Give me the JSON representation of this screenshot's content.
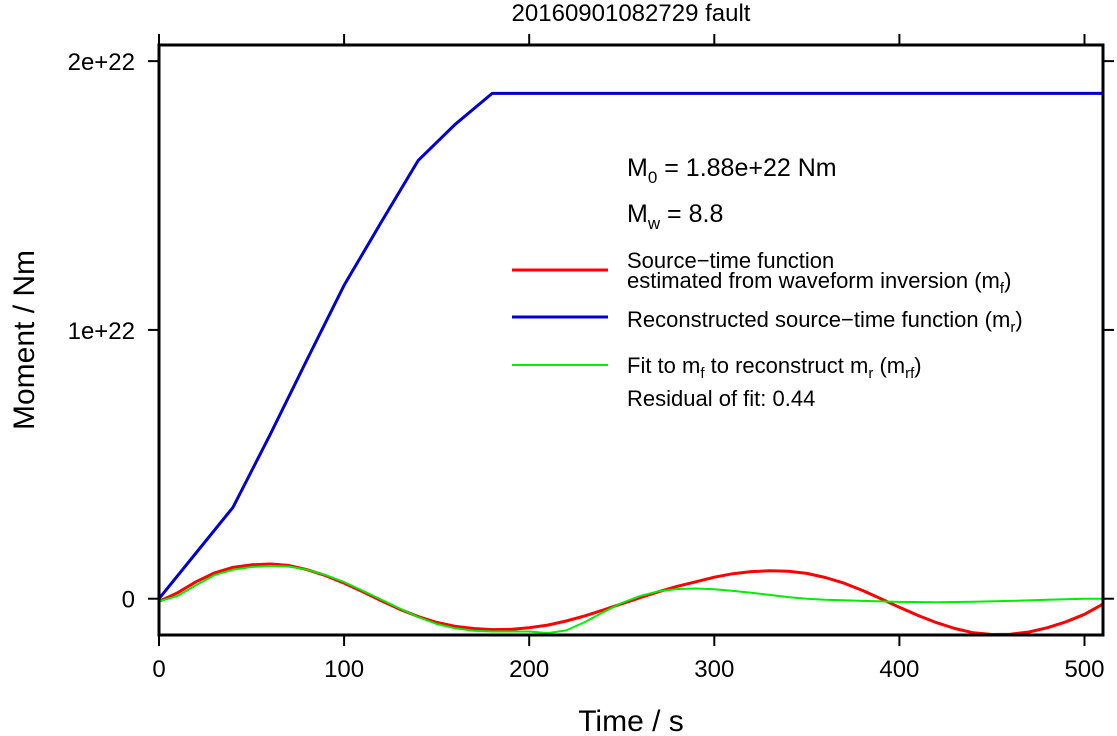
{
  "chart_data": {
    "type": "line",
    "title": "20160901082729 fault",
    "xlabel": "Time / s",
    "ylabel": "Moment / Nm",
    "xlim": [
      0,
      510
    ],
    "ylim": [
      -1.35e+21,
      2.06e+22
    ],
    "x_ticks": [
      0,
      100,
      200,
      300,
      400,
      500
    ],
    "x_tick_labels": [
      "0",
      "100",
      "200",
      "300",
      "400",
      "500"
    ],
    "y_ticks": [
      0,
      1e+22,
      2e+22
    ],
    "y_tick_labels": [
      "0",
      "1e+22",
      "2e+22"
    ],
    "grid": false,
    "legend_position": "center-right",
    "annotations": {
      "m0": {
        "base": "M",
        "sub": "0",
        "rest": " = 1.88e+22 Nm"
      },
      "mw": {
        "base": "M",
        "sub": "w",
        "rest": " = 8.8"
      },
      "residual": "Residual of fit: 0.44"
    },
    "legend": [
      {
        "color": "#ff0000",
        "line1": "Source−time function",
        "line2_pre": "estimated from waveform inversion (m",
        "line2_sub": "f",
        "line2_post": ")"
      },
      {
        "color": "#0000cc",
        "line1_pre": "Reconstructed source−time function (m",
        "line1_sub": "r",
        "line1_post": ")"
      },
      {
        "color": "#00ee00",
        "seg1": "Fit to m",
        "sub1": "f",
        "seg2": " to reconstruct m",
        "sub2": "r",
        "seg3": " (m",
        "sub3": "rf",
        "seg4": ")"
      }
    ],
    "series": [
      {
        "color": "#0000cc",
        "x": [
          0,
          20,
          40,
          60,
          80,
          100,
          120,
          140,
          160,
          180,
          200,
          300,
          400,
          510
        ],
        "y": [
          0,
          1.7e+21,
          3.4e+21,
          6.1e+21,
          8.9e+21,
          1.166e+22,
          1.4e+22,
          1.63e+22,
          1.765e+22,
          1.88e+22,
          1.88e+22,
          1.88e+22,
          1.88e+22,
          1.88e+22
        ]
      },
      {
        "color": "#ff0000",
        "x": [
          0,
          10,
          20,
          30,
          40,
          50,
          60,
          70,
          80,
          90,
          100,
          110,
          120,
          130,
          140,
          150,
          160,
          170,
          180,
          190,
          200,
          210,
          220,
          230,
          240,
          250,
          260,
          270,
          280,
          290,
          300,
          310,
          320,
          330,
          340,
          350,
          360,
          370,
          380,
          390,
          400,
          410,
          420,
          430,
          440,
          450,
          460,
          470,
          480,
          490,
          500,
          510
        ],
        "y": [
          -1e+20,
          2.2e+20,
          6.3e+20,
          9.6e+20,
          1.17e+21,
          1.26e+21,
          1.29e+21,
          1.24e+21,
          1.08e+21,
          8.6e+20,
          5.8e+20,
          2.6e+20,
          -7e+19,
          -3.9e+20,
          -6.6e+20,
          -8.8e+20,
          -1.03e+21,
          -1.11e+21,
          -1.15e+21,
          -1.14e+21,
          -1.08e+21,
          -9.8e+20,
          -8.3e+20,
          -6.4e+20,
          -4.2e+20,
          -1.9e+20,
          4e+19,
          2.6e+20,
          4.6e+20,
          6.3e+20,
          8e+20,
          9.3e+20,
          1.01e+21,
          1.04e+21,
          1.02e+21,
          9.4e+20,
          7.9e+20,
          5.8e+20,
          3.1e+20,
          0,
          -3.2e+20,
          -6.2e+20,
          -8.9e+20,
          -1.11e+21,
          -1.27e+21,
          -1.33e+21,
          -1.32e+21,
          -1.24e+21,
          -1.08e+21,
          -8.6e+20,
          -5.8e+20,
          -2e+20
        ]
      },
      {
        "color": "#00ee00",
        "x": [
          0,
          10,
          20,
          30,
          40,
          50,
          60,
          70,
          80,
          90,
          100,
          110,
          120,
          130,
          140,
          150,
          160,
          170,
          180,
          190,
          200,
          210,
          220,
          230,
          240,
          250,
          260,
          270,
          280,
          290,
          300,
          310,
          320,
          330,
          340,
          350,
          360,
          370,
          380,
          390,
          400,
          420,
          440,
          460,
          480,
          500,
          510
        ],
        "y": [
          -1e+20,
          1e+20,
          5e+20,
          8.8e+20,
          1.08e+21,
          1.18e+21,
          1.22e+21,
          1.2e+21,
          1.08e+21,
          8.8e+20,
          6.2e+20,
          3e+20,
          -3e+19,
          -3.6e+20,
          -6.8e+20,
          -9.4e+20,
          -1.1e+21,
          -1.19e+21,
          -1.22e+21,
          -1.22e+21,
          -1.22e+21,
          -1.28e+21,
          -1.18e+21,
          -8.7e+20,
          -5e+20,
          -1.6e+20,
          1e+20,
          2.8e+20,
          3.6e+20,
          3.8e+20,
          3.5e+20,
          2.9e+20,
          2.2e+20,
          1.4e+20,
          6e+19,
          0,
          -4e+19,
          -6e+19,
          -8e+19,
          -1e+20,
          -1.2e+20,
          -1.3e+20,
          -1.1e+20,
          -8e+19,
          -4e+19,
          0,
          0
        ]
      }
    ]
  }
}
